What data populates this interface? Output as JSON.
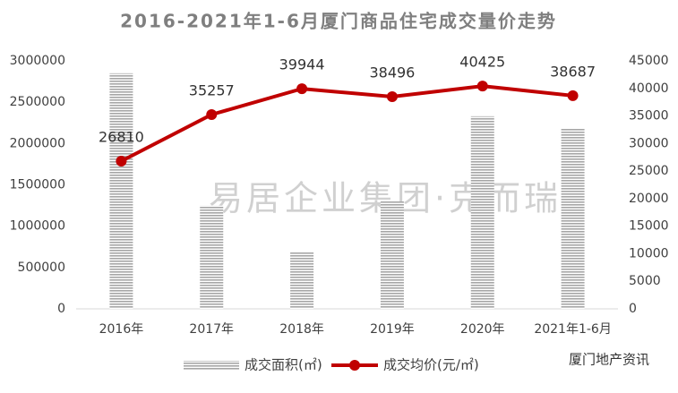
{
  "chart_data": {
    "type": "combo",
    "title": "2016-2021年1-6月厦门商品住宅成交量价走势",
    "categories": [
      "2016年",
      "2017年",
      "2018年",
      "2019年",
      "2020年",
      "2021年1-6月"
    ],
    "series": [
      {
        "name": "成交面积(㎡)",
        "type": "bar",
        "color": "#a6a6a6",
        "values": [
          2850000,
          1250000,
          690000,
          1300000,
          2330000,
          2180000
        ]
      },
      {
        "name": "成交均价(元/㎡)",
        "type": "line",
        "axis": "y2",
        "color": "#c00000",
        "values": [
          26810,
          35257,
          39944,
          38496,
          40425,
          38687
        ]
      }
    ],
    "ylim": [
      0,
      3000000
    ],
    "yticks": [
      0,
      500000,
      1000000,
      1500000,
      2000000,
      2500000,
      3000000
    ],
    "y2lim": [
      0,
      45000
    ],
    "y2ticks": [
      0,
      5000,
      10000,
      15000,
      20000,
      25000,
      30000,
      35000,
      40000,
      45000
    ],
    "grid": false,
    "legend": "bottom",
    "watermark": "易居企业集团·克而瑞",
    "credit": "厦门地产资讯"
  }
}
